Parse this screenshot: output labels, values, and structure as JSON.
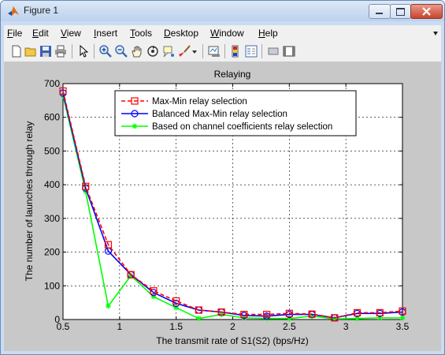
{
  "window": {
    "title": "Figure 1"
  },
  "menu": [
    "File",
    "Edit",
    "View",
    "Insert",
    "Tools",
    "Desktop",
    "Window",
    "Help"
  ],
  "menu_hotkeys": [
    "F",
    "E",
    "V",
    "I",
    "T",
    "D",
    "W",
    "H"
  ],
  "toolbar": {
    "icons": [
      "new-figure-icon",
      "open-file-icon",
      "save-icon",
      "print-icon",
      "edit-plot-arrow-icon",
      "zoom-in-icon",
      "zoom-out-icon",
      "pan-hand-icon",
      "rotate-3d-icon",
      "data-cursor-icon",
      "brush-icon",
      "link-plot-icon",
      "insert-colorbar-icon",
      "insert-legend-icon",
      "hide-plot-tools-icon",
      "show-plot-tools-icon"
    ]
  },
  "colors": {
    "series1": "#ff0000",
    "series2": "#0000ff",
    "series3": "#00ff00",
    "figure_bg": "#c8c8c8",
    "titlebar": "#c9dcf2"
  },
  "chart_data": {
    "type": "line",
    "title": "Relaying",
    "xlabel": "The transmit rate of S1(S2) (bps/Hz)",
    "ylabel": "The number of launches through relay",
    "xlim": [
      0.5,
      3.5
    ],
    "ylim": [
      0,
      700
    ],
    "xticks": [
      0.5,
      1,
      1.5,
      2,
      2.5,
      3,
      3.5
    ],
    "xtick_labels": [
      "0.5",
      "1",
      "1.5",
      "2",
      "2.5",
      "3",
      "3.5"
    ],
    "yticks": [
      0,
      100,
      200,
      300,
      400,
      500,
      600,
      700
    ],
    "ytick_labels": [
      "0",
      "100",
      "200",
      "300",
      "400",
      "500",
      "600",
      "700"
    ],
    "grid": true,
    "legend_position": "top-center",
    "x": [
      0.5,
      0.7,
      0.9,
      1.1,
      1.3,
      1.5,
      1.7,
      1.9,
      2.1,
      2.3,
      2.5,
      2.7,
      2.9,
      3.1,
      3.3,
      3.5
    ],
    "series": [
      {
        "name": "Max-Min relay selection",
        "color": "#ff0000",
        "line": "dashed",
        "marker": "square",
        "values": [
          678,
          395,
          222,
          133,
          85,
          55,
          28,
          22,
          15,
          15,
          18,
          16,
          5,
          20,
          20,
          25
        ]
      },
      {
        "name": "Balanced Max-Min relay selection",
        "color": "#0000ff",
        "line": "solid",
        "marker": "circle",
        "values": [
          672,
          390,
          203,
          133,
          80,
          48,
          28,
          22,
          12,
          10,
          15,
          15,
          5,
          18,
          18,
          22
        ]
      },
      {
        "name": "Based on channel coefficients relay selection",
        "color": "#00ff00",
        "line": "solid",
        "marker": "star",
        "values": [
          665,
          380,
          40,
          130,
          68,
          35,
          3,
          15,
          5,
          3,
          3,
          10,
          2,
          3,
          5,
          5
        ]
      }
    ]
  }
}
